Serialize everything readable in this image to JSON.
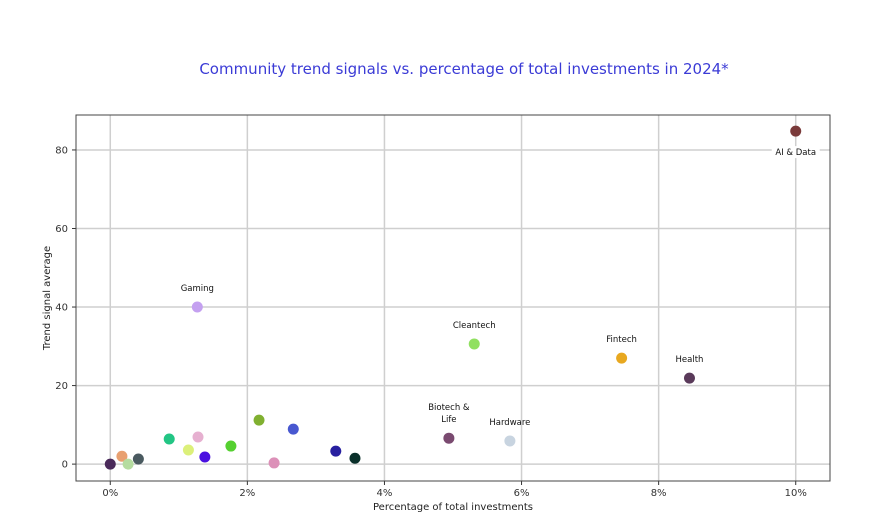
{
  "chart_data": {
    "type": "scatter",
    "title": "Community trend signals  vs. percentage of total investments in 2024*",
    "xlabel": "Percentage of total investments",
    "ylabel": "Trend signal average",
    "xlim": [
      -0.5,
      10.5
    ],
    "ylim": [
      -4.3,
      88.9
    ],
    "grid": true,
    "xticks": [
      0,
      2,
      4,
      6,
      8,
      10
    ],
    "xtick_labels": [
      "0%",
      "2%",
      "4%",
      "6%",
      "8%",
      "10%"
    ],
    "yticks": [
      0,
      20,
      40,
      60,
      80
    ],
    "ytick_labels": [
      "0",
      "20",
      "40",
      "60",
      "80"
    ],
    "points": [
      {
        "x": 0.0,
        "y": 0.0,
        "color": "#4a2a5a",
        "label": ""
      },
      {
        "x": 0.17,
        "y": 2.0,
        "color": "#e8a070",
        "label": ""
      },
      {
        "x": 0.26,
        "y": 0.0,
        "color": "#b5dca0",
        "label": ""
      },
      {
        "x": 0.41,
        "y": 1.3,
        "color": "#4a5a60",
        "label": ""
      },
      {
        "x": 0.86,
        "y": 6.4,
        "color": "#22c584",
        "label": ""
      },
      {
        "x": 1.14,
        "y": 3.6,
        "color": "#dcf07a",
        "label": ""
      },
      {
        "x": 1.28,
        "y": 6.9,
        "color": "#e6b0d0",
        "label": ""
      },
      {
        "x": 1.38,
        "y": 1.8,
        "color": "#4a10e0",
        "label": ""
      },
      {
        "x": 1.76,
        "y": 4.6,
        "color": "#55d030",
        "label": ""
      },
      {
        "x": 2.17,
        "y": 11.2,
        "color": "#80b030",
        "label": ""
      },
      {
        "x": 2.39,
        "y": 0.3,
        "color": "#dc90b8",
        "label": ""
      },
      {
        "x": 2.67,
        "y": 8.9,
        "color": "#4858d0",
        "label": ""
      },
      {
        "x": 3.29,
        "y": 3.3,
        "color": "#2820a0",
        "label": ""
      },
      {
        "x": 3.57,
        "y": 1.5,
        "color": "#0a302a",
        "label": ""
      },
      {
        "x": 1.27,
        "y": 40.0,
        "color": "#c4a0f0",
        "label": "Gaming"
      },
      {
        "x": 5.31,
        "y": 30.6,
        "color": "#90e060",
        "label": "Cleantech"
      },
      {
        "x": 7.46,
        "y": 27.0,
        "color": "#e8a820",
        "label": "Fintech"
      },
      {
        "x": 8.45,
        "y": 21.9,
        "color": "#5a3a5a",
        "label": "Health"
      },
      {
        "x": 4.94,
        "y": 6.6,
        "color": "#7a4a70",
        "label": "Biotech &\nLife"
      },
      {
        "x": 5.83,
        "y": 5.9,
        "color": "#c8d4e0",
        "label": "Hardware"
      },
      {
        "x": 10.0,
        "y": 84.8,
        "color": "#7a3a3a",
        "label": "AI & Data"
      }
    ]
  }
}
